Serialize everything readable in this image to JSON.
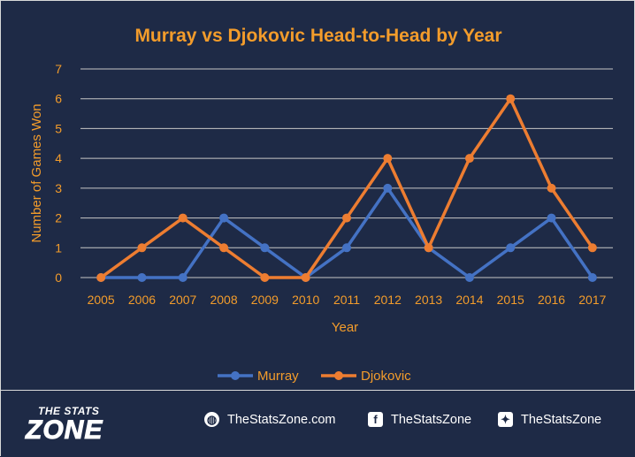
{
  "chart_data": {
    "type": "line",
    "title": "Murray vs Djokovic Head-to-Head by Year",
    "xlabel": "Year",
    "ylabel": "Number  of Games Won",
    "x": [
      "2005",
      "2006",
      "2007",
      "2008",
      "2009",
      "2010",
      "2011",
      "2012",
      "2013",
      "2014",
      "2015",
      "2016",
      "2017"
    ],
    "ylim": [
      0,
      7
    ],
    "yticks": [
      0,
      1,
      2,
      3,
      4,
      5,
      6,
      7
    ],
    "grid": true,
    "legend": "bottom",
    "series": [
      {
        "name": "Murray",
        "color": "#4472c4",
        "values": [
          0,
          0,
          0,
          2,
          1,
          0,
          1,
          3,
          1,
          0,
          1,
          2,
          0
        ]
      },
      {
        "name": "Djokovic",
        "color": "#ed7d31",
        "values": [
          0,
          1,
          2,
          1,
          0,
          0,
          2,
          4,
          1,
          4,
          6,
          3,
          1
        ]
      }
    ]
  },
  "colors": {
    "text": "#f39c2b",
    "grid": "#c7c7c7",
    "background": "#1e2a46"
  },
  "footer": {
    "logo_top": "THE STATS",
    "logo_main": "ZONE",
    "links": [
      {
        "icon": "globe-icon",
        "text": "TheStatsZone.com"
      },
      {
        "icon": "facebook-icon",
        "text": "TheStatsZone"
      },
      {
        "icon": "twitter-icon",
        "text": "TheStatsZone"
      }
    ]
  }
}
